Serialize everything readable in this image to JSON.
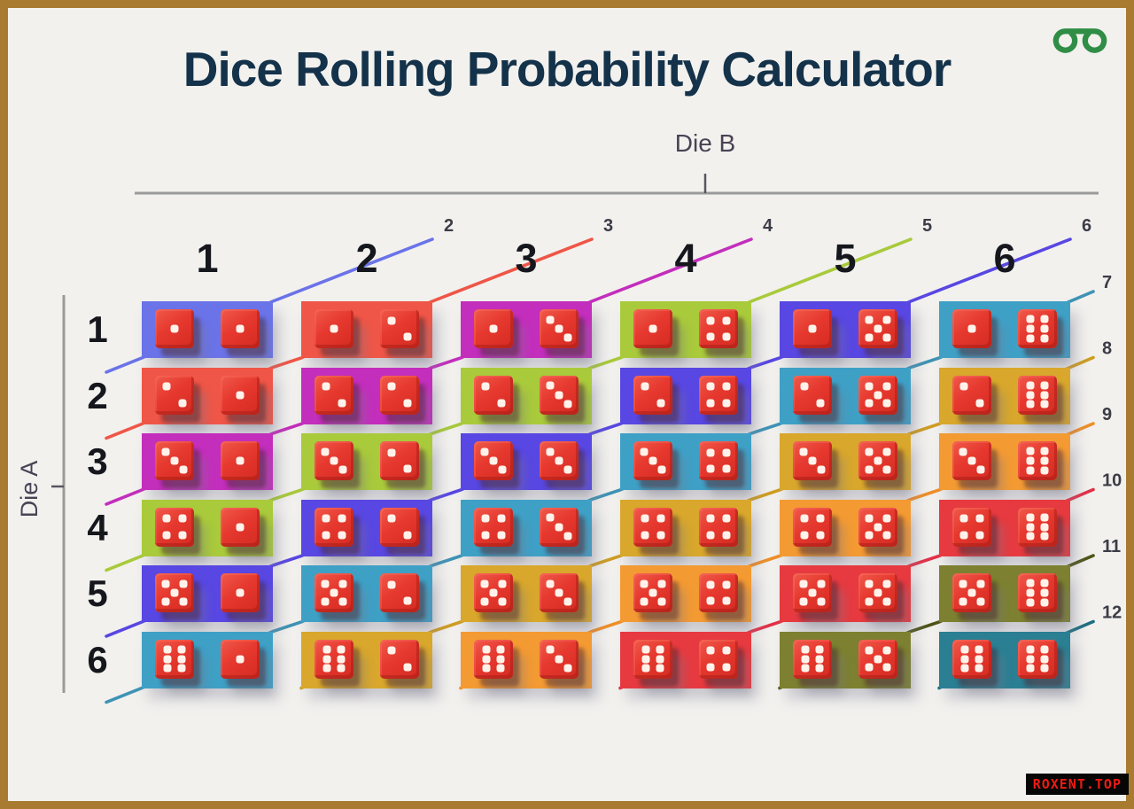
{
  "title": "Dice Rolling Probability Calculator",
  "logo_name": "geeksforgeeks-logo",
  "watermark": {
    "text": "ROXENT.TOP"
  },
  "axes": {
    "col_axis_label": "Die B",
    "row_axis_label": "Die A",
    "col_headers": [
      "1",
      "2",
      "3",
      "4",
      "5",
      "6"
    ],
    "row_headers": [
      "1",
      "2",
      "3",
      "4",
      "5",
      "6"
    ]
  },
  "sums": [
    {
      "label": "2",
      "color": "#6a73e8",
      "line_color": "#6a73e8"
    },
    {
      "label": "3",
      "color": "#ef5647",
      "line_color": "#ef5647"
    },
    {
      "label": "4",
      "color": "#c32ebc",
      "line_color": "#c32ebc"
    },
    {
      "label": "5",
      "color": "#a9ca3b",
      "line_color": "#a9ca3b"
    },
    {
      "label": "6",
      "color": "#5847e2",
      "line_color": "#5847e2"
    },
    {
      "label": "7",
      "color": "#3fa0c6",
      "line_color": "#3f93b5"
    },
    {
      "label": "8",
      "color": "#d8a72c",
      "line_color": "#cf9d22"
    },
    {
      "label": "9",
      "color": "#f39a33",
      "line_color": "#ef8f28"
    },
    {
      "label": "10",
      "color": "#e63a40",
      "line_color": "#e33048"
    },
    {
      "label": "11",
      "color": "#7c8030",
      "line_color": "#4f5518"
    },
    {
      "label": "12",
      "color": "#2b7f93",
      "line_color": "#1c6f82"
    }
  ],
  "colors": {
    "page_bg": "#f2f1ee",
    "frame": "#a87b31",
    "title": "#14324a",
    "header_text": "#15171d",
    "axis_label": "#4a4254",
    "axis_line": "#9a9a9a",
    "tick": "#5a5560",
    "sum_label": "#3c3c46",
    "die_face": "#e6382e",
    "die_face_light": "#f0594b",
    "die_face_dark": "#d42b22",
    "pip": "#fff2ea",
    "brand_green": "#2f8d46",
    "watermark_bg": "#060606",
    "watermark_text": "#ee1b12"
  },
  "chart_data": {
    "type": "table",
    "title": "Dice Rolling Probability Calculator",
    "x_axis": "Die B",
    "y_axis": "Die A",
    "columns": [
      1,
      2,
      3,
      4,
      5,
      6
    ],
    "rows": [
      1,
      2,
      3,
      4,
      5,
      6
    ],
    "matrix": [
      [
        2,
        3,
        4,
        5,
        6,
        7
      ],
      [
        3,
        4,
        5,
        6,
        7,
        8
      ],
      [
        4,
        5,
        6,
        7,
        8,
        9
      ],
      [
        5,
        6,
        7,
        8,
        9,
        10
      ],
      [
        6,
        7,
        8,
        9,
        10,
        11
      ],
      [
        7,
        8,
        9,
        10,
        11,
        12
      ]
    ]
  }
}
